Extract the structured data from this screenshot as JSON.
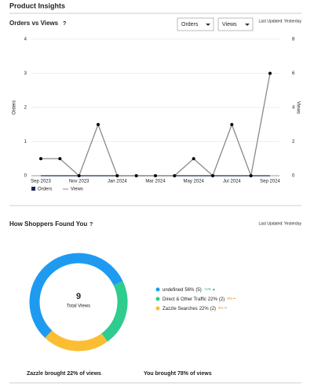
{
  "header": {
    "title": "Product Insights"
  },
  "chart_data": [
    {
      "type": "line",
      "title": "Orders vs Views",
      "last_updated": "Last Updated: Yesterday",
      "dropdowns": [
        "Orders",
        "Views"
      ],
      "categories": [
        "Sep 2023",
        null,
        "Nov 2023",
        null,
        "Jan 2024",
        null,
        "Mar 2024",
        null,
        "May 2024",
        null,
        "Jul 2024",
        null,
        "Sep 2024"
      ],
      "series": [
        {
          "name": "Orders",
          "color": "#1f2a5a",
          "values": [
            0,
            0,
            0,
            0,
            0,
            0,
            0,
            0,
            0,
            0,
            0,
            0,
            0
          ]
        },
        {
          "name": "Views",
          "color": "#8a8a8a",
          "marker_color": "#000000",
          "axis": "y2",
          "values": [
            1,
            1,
            0,
            3,
            0,
            0,
            0,
            0,
            1,
            0,
            3,
            0,
            6
          ]
        }
      ],
      "ylabel": "Orders",
      "y2label": "Views",
      "ylim": [
        0,
        4
      ],
      "yticks": [
        0,
        1,
        2,
        3,
        4
      ],
      "y2lim": [
        0,
        8
      ],
      "y2ticks": [
        0,
        2,
        4,
        6,
        8
      ],
      "grid": true
    },
    {
      "type": "donut",
      "title": "How Shoppers Found You",
      "last_updated": "Last Updated: Yesterday",
      "categories": [
        "undefined",
        "Direct & Other Traffic",
        "Zazzle Searches"
      ],
      "values": [
        56,
        22,
        22
      ],
      "value_labels": [
        "56%",
        "22%",
        "22%"
      ],
      "count_labels": [
        "(5)",
        "(2)",
        "(2)"
      ],
      "changes": [
        "+1% ▲",
        "0% ••",
        "0% ••"
      ],
      "change_colors": [
        "#2e9e55",
        "#e08a1e",
        "#e08a1e"
      ],
      "colors": [
        "#1e9bf0",
        "#2ecc8f",
        "#fbbd32"
      ],
      "center_value": 9,
      "center_label": "Total Views",
      "footer": [
        "Zazzle brought 22% of views",
        "You brought 78% of views"
      ]
    }
  ]
}
